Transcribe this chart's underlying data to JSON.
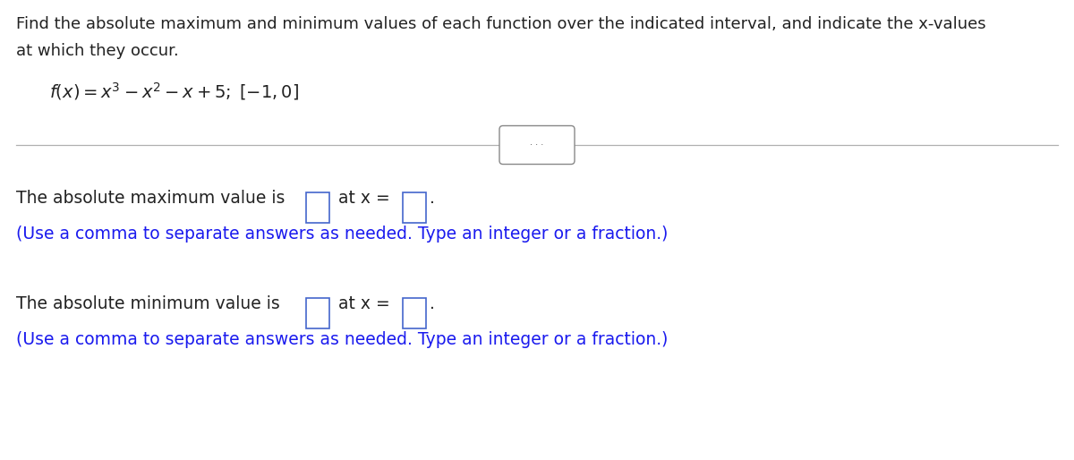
{
  "background_color": "#ffffff",
  "text_color": "#1a1aee",
  "black_color": "#222222",
  "gray_color": "#aaaaaa",
  "dots_color": "#666666",
  "title_line1": "Find the absolute maximum and minimum values of each function over the indicated interval, and indicate the x-values",
  "title_line2": "at which they occur.",
  "max_line": "The absolute maximum value is",
  "max_at": "at x =",
  "min_line": "The absolute minimum value is",
  "min_at": "at x =",
  "hint_line": "(Use a comma to separate answers as needed. Type an integer or a fraction.)",
  "title_fontsize": 13.0,
  "body_fontsize": 13.5,
  "hint_fontsize": 13.5,
  "function_fontsize": 14.0,
  "fig_width": 12.0,
  "fig_height": 5.14,
  "dpi": 100
}
